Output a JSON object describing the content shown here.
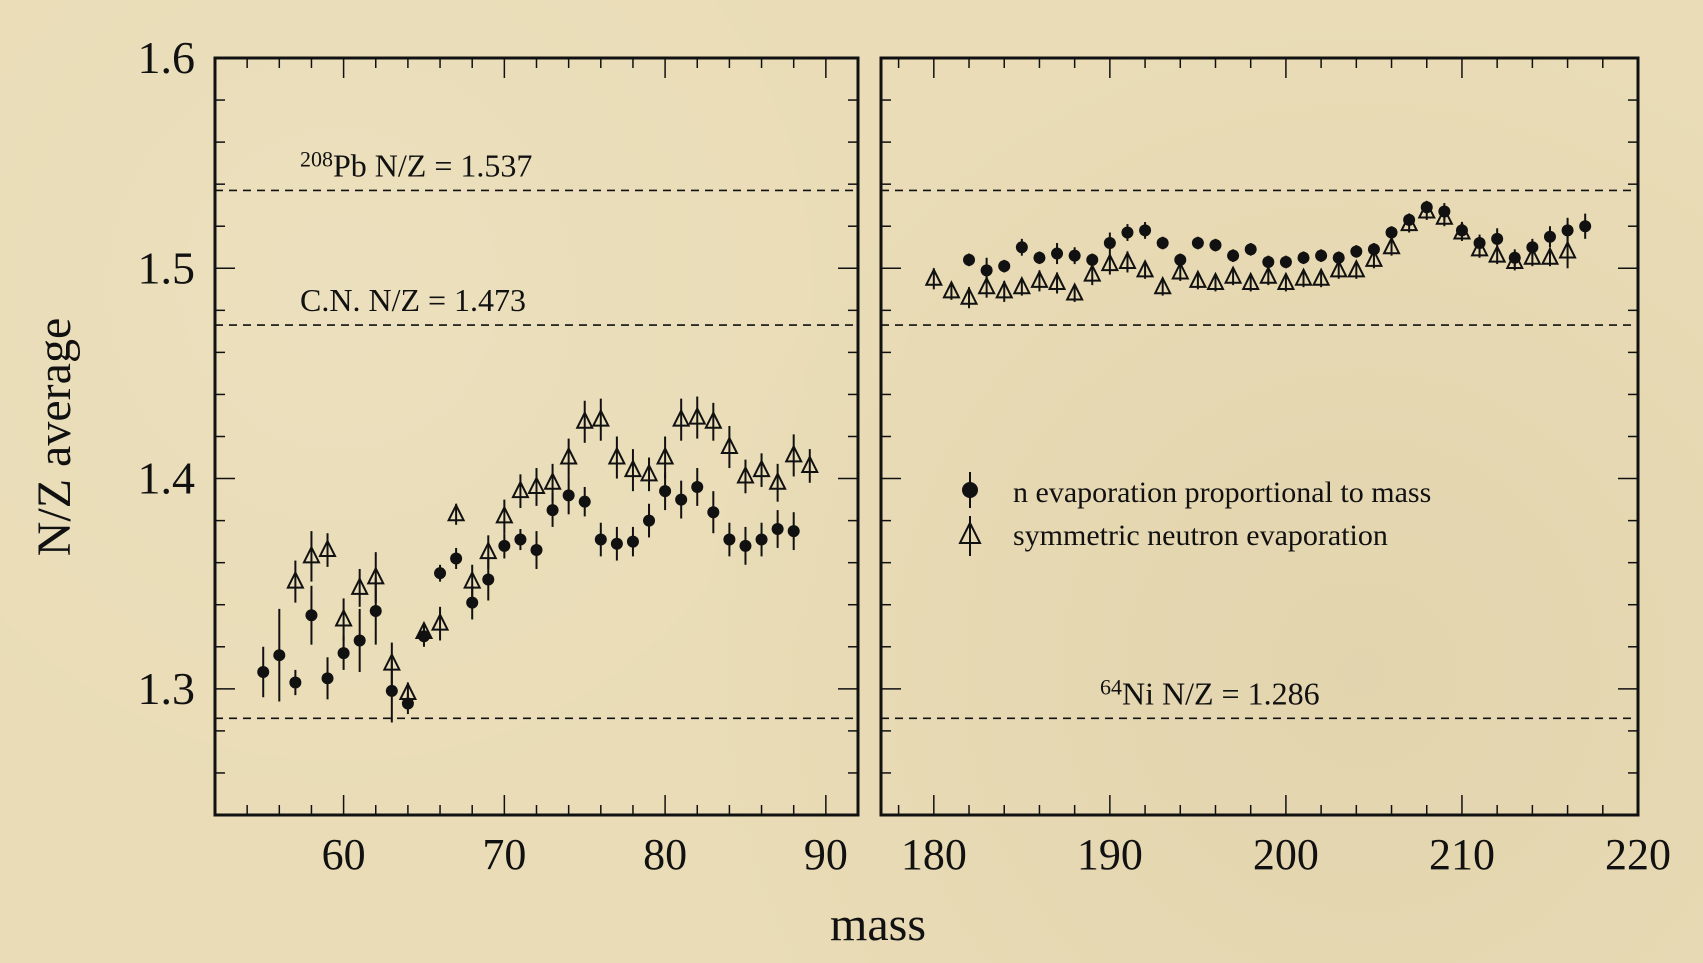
{
  "chart_data": {
    "type": "scatter",
    "ylabel": "N/Z average",
    "xlabel": "mass",
    "ylim": [
      1.24,
      1.6
    ],
    "y_ticks": [
      "1.3",
      "1.4",
      "1.5",
      "1.6"
    ],
    "legend": {
      "placement": "right panel, middle",
      "entries": [
        "n evaporation proportional to mass",
        "symmetric neutron evaporation"
      ]
    },
    "reference_lines": [
      {
        "y": 1.537,
        "label_sup": "208",
        "label": "Pb N/Z = 1.537"
      },
      {
        "y": 1.473,
        "label_sup": "",
        "label": "C.N. N/Z = 1.473"
      },
      {
        "y": 1.286,
        "label_sup": "64",
        "label": "Ni N/Z = 1.286"
      }
    ],
    "panels": [
      {
        "xlim": [
          52,
          92
        ],
        "x_ticks": [
          "60",
          "70",
          "80",
          "90"
        ],
        "series": [
          {
            "name": "n evaporation proportional to mass",
            "marker": "filled-circle",
            "x": [
              55,
              56,
              57,
              58,
              59,
              60,
              61,
              62,
              63,
              64,
              65,
              66,
              67,
              68,
              69,
              70,
              71,
              72,
              73,
              74,
              75,
              76,
              77,
              78,
              79,
              80,
              81,
              82,
              83,
              84,
              85,
              86,
              87,
              88
            ],
            "y": [
              1.308,
              1.316,
              1.303,
              1.335,
              1.305,
              1.317,
              1.323,
              1.337,
              1.299,
              1.293,
              1.325,
              1.355,
              1.362,
              1.341,
              1.352,
              1.368,
              1.371,
              1.366,
              1.385,
              1.392,
              1.389,
              1.371,
              1.369,
              1.37,
              1.38,
              1.394,
              1.39,
              1.396,
              1.384,
              1.371,
              1.368,
              1.371,
              1.376,
              1.375
            ],
            "err": [
              0.012,
              0.022,
              0.006,
              0.014,
              0.01,
              0.008,
              0.015,
              0.016,
              0.015,
              0.005,
              0.005,
              0.004,
              0.005,
              0.008,
              0.01,
              0.006,
              0.005,
              0.009,
              0.008,
              0.009,
              0.007,
              0.008,
              0.008,
              0.007,
              0.008,
              0.009,
              0.009,
              0.009,
              0.01,
              0.008,
              0.009,
              0.008,
              0.009,
              0.009
            ]
          },
          {
            "name": "symmetric neutron evaporation",
            "marker": "open-triangle",
            "x": [
              57,
              58,
              59,
              60,
              61,
              62,
              63,
              64,
              65,
              66,
              67,
              68,
              69,
              70,
              71,
              72,
              73,
              74,
              75,
              76,
              77,
              78,
              79,
              80,
              81,
              82,
              83,
              84,
              85,
              86,
              87,
              88,
              89
            ],
            "y": [
              1.351,
              1.363,
              1.366,
              1.333,
              1.348,
              1.353,
              1.312,
              1.298,
              1.327,
              1.331,
              1.383,
              1.351,
              1.365,
              1.382,
              1.394,
              1.396,
              1.398,
              1.41,
              1.427,
              1.428,
              1.41,
              1.404,
              1.402,
              1.41,
              1.428,
              1.429,
              1.427,
              1.415,
              1.401,
              1.404,
              1.398,
              1.411,
              1.406
            ],
            "err": [
              0.01,
              0.012,
              0.008,
              0.01,
              0.009,
              0.012,
              0.01,
              0.005,
              0.004,
              0.008,
              0.005,
              0.008,
              0.008,
              0.008,
              0.008,
              0.009,
              0.009,
              0.009,
              0.01,
              0.01,
              0.01,
              0.01,
              0.008,
              0.01,
              0.01,
              0.01,
              0.009,
              0.01,
              0.008,
              0.008,
              0.009,
              0.01,
              0.008
            ]
          }
        ]
      },
      {
        "xlim": [
          177,
          220
        ],
        "x_ticks": [
          "180",
          "190",
          "200",
          "210",
          "220"
        ],
        "series": [
          {
            "name": "n evaporation proportional to mass",
            "marker": "filled-circle",
            "x": [
              182,
              183,
              184,
              185,
              186,
              187,
              188,
              189,
              190,
              191,
              192,
              193,
              194,
              195,
              196,
              197,
              198,
              199,
              200,
              201,
              202,
              203,
              204,
              205,
              206,
              207,
              208,
              209,
              210,
              211,
              212,
              213,
              214,
              215,
              216,
              217
            ],
            "y": [
              1.504,
              1.499,
              1.501,
              1.51,
              1.505,
              1.507,
              1.506,
              1.504,
              1.512,
              1.517,
              1.518,
              1.512,
              1.504,
              1.512,
              1.511,
              1.506,
              1.509,
              1.503,
              1.503,
              1.505,
              1.506,
              1.505,
              1.508,
              1.509,
              1.517,
              1.523,
              1.529,
              1.527,
              1.518,
              1.512,
              1.514,
              1.505,
              1.51,
              1.515,
              1.518,
              1.52
            ],
            "err": [
              0.003,
              0.006,
              0.003,
              0.004,
              0.003,
              0.005,
              0.004,
              0.003,
              0.005,
              0.004,
              0.004,
              0.003,
              0.003,
              0.003,
              0.003,
              0.003,
              0.003,
              0.003,
              0.003,
              0.003,
              0.003,
              0.003,
              0.003,
              0.003,
              0.003,
              0.003,
              0.003,
              0.004,
              0.004,
              0.004,
              0.005,
              0.004,
              0.004,
              0.005,
              0.006,
              0.006
            ]
          },
          {
            "name": "symmetric neutron evaporation",
            "marker": "open-triangle",
            "x": [
              180,
              181,
              182,
              183,
              184,
              185,
              186,
              187,
              188,
              189,
              190,
              191,
              192,
              193,
              194,
              195,
              196,
              197,
              198,
              199,
              200,
              201,
              202,
              203,
              204,
              205,
              206,
              207,
              208,
              209,
              210,
              211,
              212,
              213,
              214,
              215,
              216
            ],
            "y": [
              1.495,
              1.489,
              1.486,
              1.491,
              1.489,
              1.491,
              1.494,
              1.493,
              1.488,
              1.497,
              1.502,
              1.503,
              1.499,
              1.491,
              1.498,
              1.494,
              1.493,
              1.496,
              1.493,
              1.496,
              1.493,
              1.495,
              1.495,
              1.499,
              1.499,
              1.504,
              1.51,
              1.521,
              1.527,
              1.524,
              1.517,
              1.509,
              1.506,
              1.503,
              1.505,
              1.505,
              1.508
            ],
            "err": [
              0.005,
              0.004,
              0.005,
              0.005,
              0.005,
              0.004,
              0.005,
              0.005,
              0.004,
              0.005,
              0.005,
              0.005,
              0.004,
              0.004,
              0.004,
              0.004,
              0.004,
              0.004,
              0.004,
              0.004,
              0.004,
              0.004,
              0.004,
              0.004,
              0.004,
              0.004,
              0.004,
              0.004,
              0.004,
              0.004,
              0.004,
              0.004,
              0.004,
              0.004,
              0.004,
              0.004,
              0.008
            ]
          }
        ]
      }
    ]
  }
}
